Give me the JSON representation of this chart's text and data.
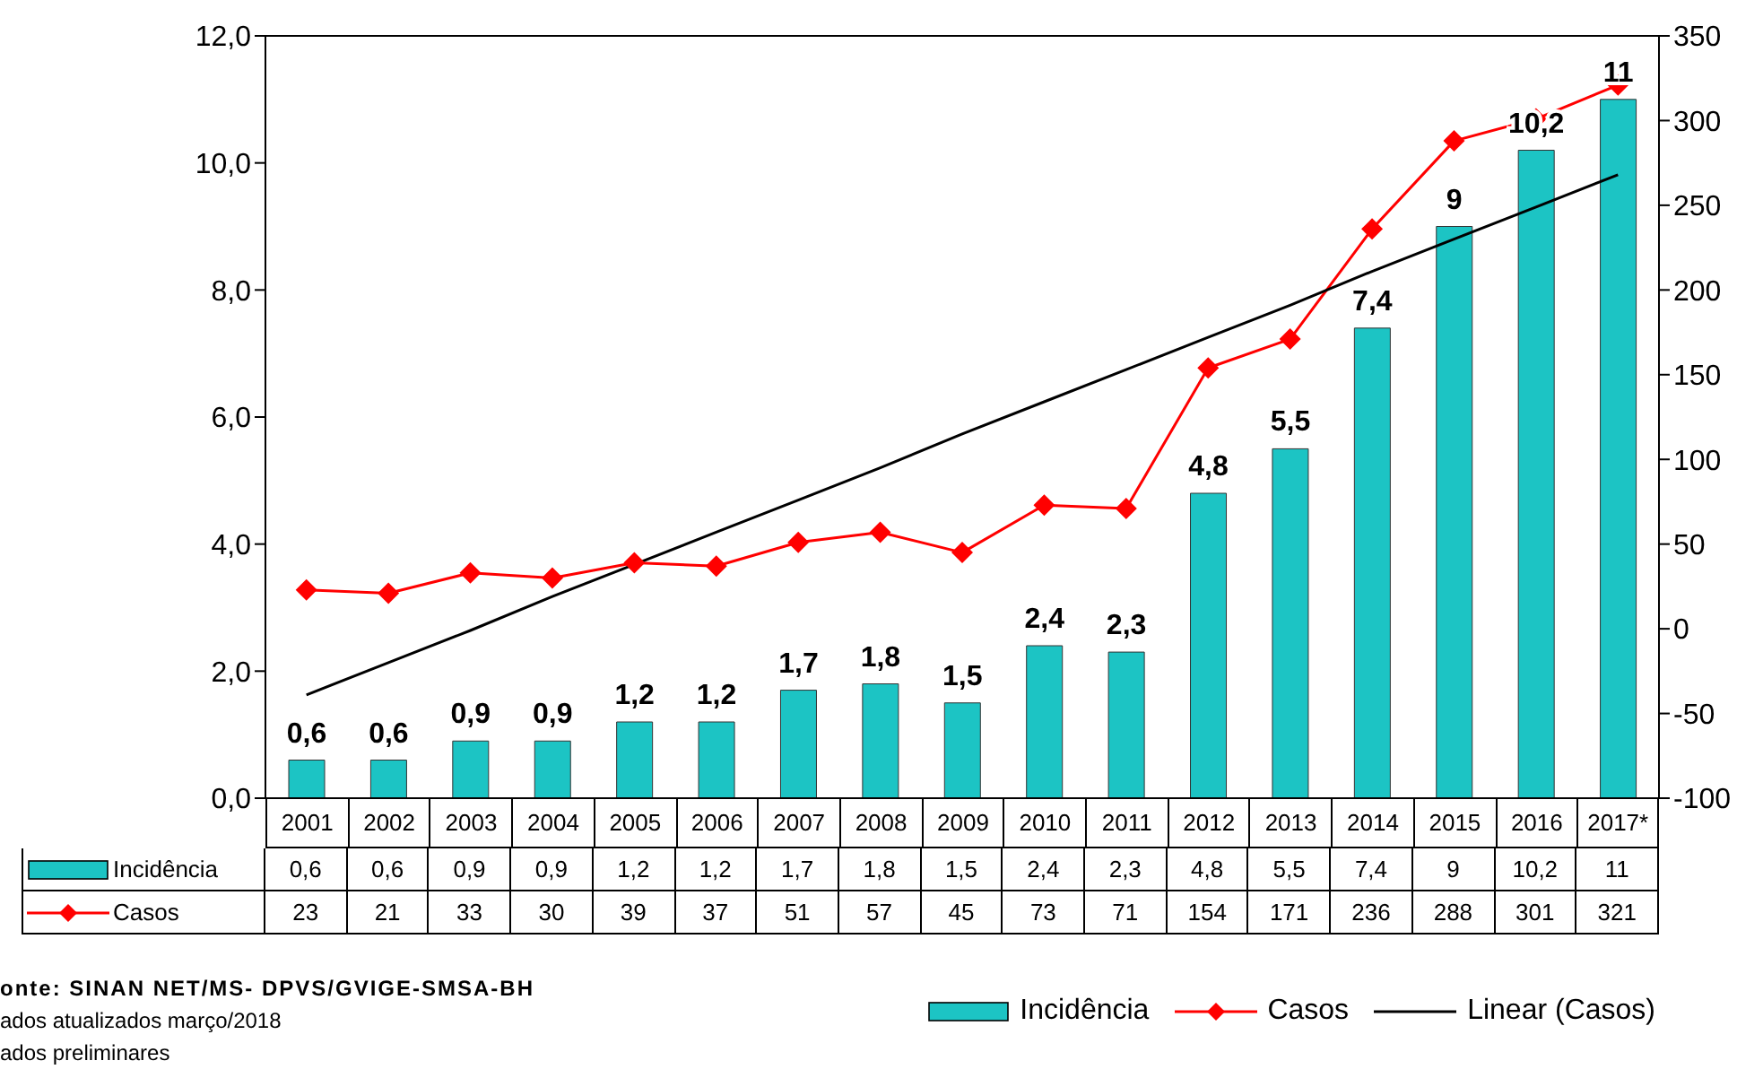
{
  "chart_data": {
    "type": "bar",
    "categories": [
      "2001",
      "2002",
      "2003",
      "2004",
      "2005",
      "2006",
      "2007",
      "2008",
      "2009",
      "2010",
      "2011",
      "2012",
      "2013",
      "2014",
      "2015",
      "2016",
      "2017*"
    ],
    "series": [
      {
        "name": "Incidência",
        "color": "#1cc4c4",
        "values": [
          0.6,
          0.6,
          0.9,
          0.9,
          1.2,
          1.2,
          1.7,
          1.8,
          1.5,
          2.4,
          2.3,
          4.8,
          5.5,
          7.4,
          9,
          10.2,
          11
        ],
        "value_labels": [
          "0,6",
          "0,6",
          "0,9",
          "0,9",
          "1,2",
          "1,2",
          "1,7",
          "1,8",
          "1,5",
          "2,4",
          "2,3",
          "4,8",
          "5,5",
          "7,4",
          "9",
          "10,2",
          "11"
        ]
      },
      {
        "name": "Casos",
        "type": "line",
        "axis": "y2",
        "color": "#ff0000",
        "marker": "diamond",
        "values": [
          23,
          21,
          33,
          30,
          39,
          37,
          51,
          57,
          45,
          73,
          71,
          154,
          171,
          236,
          288,
          301,
          321
        ],
        "value_labels": [
          "23",
          "21",
          "33",
          "30",
          "39",
          "37",
          "51",
          "57",
          "45",
          "73",
          "71",
          "154",
          "171",
          "236",
          "288",
          "301",
          "321"
        ]
      },
      {
        "name": "Linear (Casos)",
        "type": "line",
        "axis": "y2",
        "color": "#000000",
        "marker": "none",
        "values": [
          -39,
          -20,
          -1,
          19,
          38,
          57,
          76,
          95,
          115,
          134,
          153,
          172,
          191,
          211,
          230,
          249,
          268
        ]
      }
    ],
    "ylim": [
      0,
      12
    ],
    "yticks": [
      {
        "value": 0,
        "label": "0,0"
      },
      {
        "value": 2,
        "label": "2,0"
      },
      {
        "value": 4,
        "label": "4,0"
      },
      {
        "value": 6,
        "label": "6,0"
      },
      {
        "value": 8,
        "label": "8,0"
      },
      {
        "value": 10,
        "label": "10,0"
      },
      {
        "value": 12,
        "label": "12,0"
      }
    ],
    "y2lim": [
      -100,
      350
    ],
    "y2ticks": [
      -100,
      -50,
      0,
      50,
      100,
      150,
      200,
      250,
      300,
      350
    ],
    "legend": "bottom",
    "annotations": [
      "onte: SINAN NET/MS- DPVS/GVIGE-SMSA-BH",
      "ados atualizados março/2018",
      "ados preliminares"
    ]
  }
}
